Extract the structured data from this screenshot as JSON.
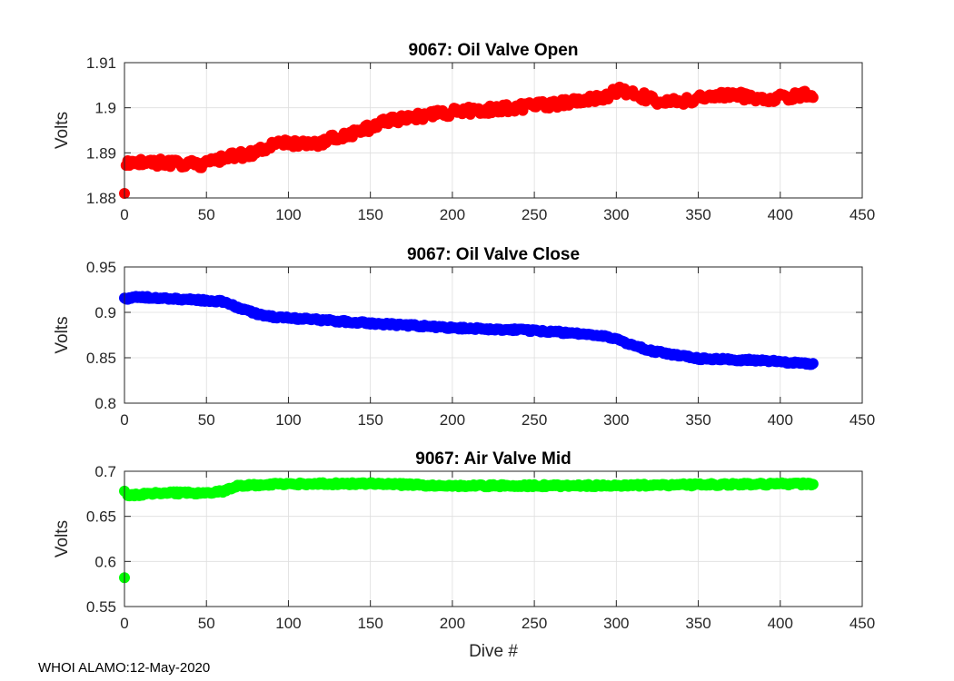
{
  "figure": {
    "footer": "WHOI ALAMO:12-May-2020",
    "colors": {
      "background": "#ffffff",
      "axis": "#262626",
      "grid": "#dedede"
    }
  },
  "chart_data": [
    {
      "type": "scatter",
      "title": "9067: Oil Valve Open",
      "xlabel": "",
      "ylabel": "Volts",
      "xlim": [
        0,
        450
      ],
      "ylim": [
        1.88,
        1.91
      ],
      "xticks": [
        0,
        50,
        100,
        150,
        200,
        250,
        300,
        350,
        400,
        450
      ],
      "xtick_labels": [
        "0",
        "50",
        "100",
        "150",
        "200",
        "250",
        "300",
        "350",
        "400",
        "450"
      ],
      "yticks": [
        1.88,
        1.89,
        1.9,
        1.91
      ],
      "ytick_labels": [
        "1.88",
        "1.89",
        "1.9",
        "1.91"
      ],
      "grid": true,
      "color": "#ff0000",
      "outliers": [
        [
          0,
          1.881
        ]
      ],
      "dive_range": [
        1,
        420
      ],
      "noise": 0.0009,
      "trend": [
        [
          1,
          1.888
        ],
        [
          50,
          1.8875
        ],
        [
          60,
          1.889
        ],
        [
          80,
          1.89
        ],
        [
          90,
          1.892
        ],
        [
          115,
          1.892
        ],
        [
          145,
          1.895
        ],
        [
          160,
          1.897
        ],
        [
          175,
          1.898
        ],
        [
          200,
          1.899
        ],
        [
          240,
          1.9
        ],
        [
          270,
          1.901
        ],
        [
          290,
          1.902
        ],
        [
          303,
          1.904
        ],
        [
          330,
          1.901
        ],
        [
          350,
          1.902
        ],
        [
          370,
          1.903
        ],
        [
          390,
          1.902
        ],
        [
          420,
          1.903
        ]
      ]
    },
    {
      "type": "scatter",
      "title": "9067: Oil Valve Close",
      "xlabel": "",
      "ylabel": "Volts",
      "xlim": [
        0,
        450
      ],
      "ylim": [
        0.8,
        0.95
      ],
      "xticks": [
        0,
        50,
        100,
        150,
        200,
        250,
        300,
        350,
        400,
        450
      ],
      "xtick_labels": [
        "0",
        "50",
        "100",
        "150",
        "200",
        "250",
        "300",
        "350",
        "400",
        "450"
      ],
      "yticks": [
        0.8,
        0.85,
        0.9,
        0.95
      ],
      "ytick_labels": [
        "0.8",
        "0.85",
        "0.9",
        "0.95"
      ],
      "grid": true,
      "color": "#0000ff",
      "outliers": [],
      "dive_range": [
        0,
        420
      ],
      "noise": 0.0012,
      "trend": [
        [
          0,
          0.915
        ],
        [
          10,
          0.917
        ],
        [
          30,
          0.915
        ],
        [
          60,
          0.912
        ],
        [
          70,
          0.905
        ],
        [
          85,
          0.896
        ],
        [
          100,
          0.894
        ],
        [
          150,
          0.888
        ],
        [
          200,
          0.883
        ],
        [
          250,
          0.88
        ],
        [
          290,
          0.875
        ],
        [
          300,
          0.87
        ],
        [
          320,
          0.858
        ],
        [
          340,
          0.852
        ],
        [
          350,
          0.849
        ],
        [
          390,
          0.847
        ],
        [
          420,
          0.843
        ]
      ]
    },
    {
      "type": "scatter",
      "title": "9067: Air Valve Mid",
      "xlabel": "Dive #",
      "ylabel": "Volts",
      "xlim": [
        0,
        450
      ],
      "ylim": [
        0.55,
        0.7
      ],
      "xticks": [
        0,
        50,
        100,
        150,
        200,
        250,
        300,
        350,
        400,
        450
      ],
      "xtick_labels": [
        "0",
        "50",
        "100",
        "150",
        "200",
        "250",
        "300",
        "350",
        "400",
        "450"
      ],
      "yticks": [
        0.55,
        0.6,
        0.65,
        0.7
      ],
      "ytick_labels": [
        "0.55",
        "0.6",
        "0.65",
        "0.7"
      ],
      "grid": true,
      "color": "#00ff00",
      "outliers": [
        [
          0,
          0.582
        ],
        [
          0,
          0.678
        ]
      ],
      "dive_range": [
        2,
        420
      ],
      "noise": 0.0013,
      "trend": [
        [
          2,
          0.673
        ],
        [
          20,
          0.676
        ],
        [
          50,
          0.676
        ],
        [
          60,
          0.678
        ],
        [
          70,
          0.684
        ],
        [
          100,
          0.686
        ],
        [
          150,
          0.686
        ],
        [
          200,
          0.684
        ],
        [
          300,
          0.684
        ],
        [
          400,
          0.686
        ],
        [
          420,
          0.686
        ]
      ]
    }
  ]
}
